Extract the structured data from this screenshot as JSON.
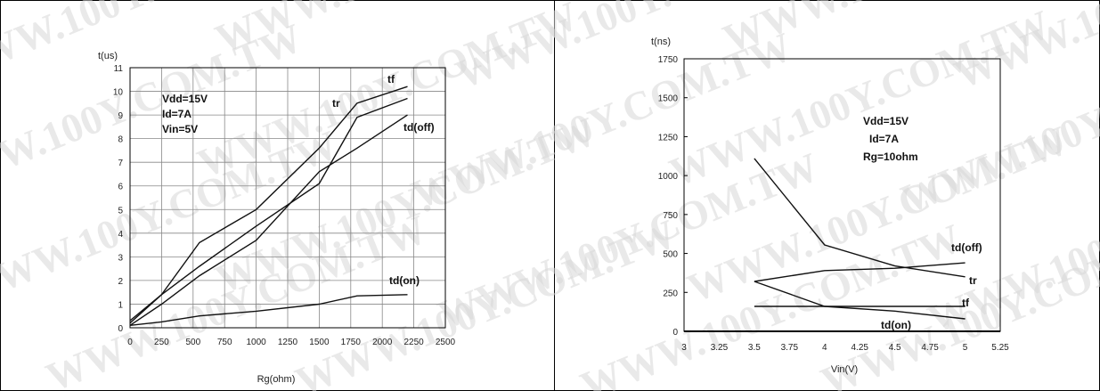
{
  "watermark": "WWW.100Y.COM.TW",
  "chart_data": [
    {
      "type": "line",
      "ylabel": "t(us)",
      "xlabel": "Rg(ohm)",
      "xlim": [
        0,
        2500
      ],
      "ylim": [
        0,
        11
      ],
      "x_ticks": [
        "0",
        "250",
        "500",
        "750",
        "1000",
        "1250",
        "1500",
        "1750",
        "2000",
        "2250",
        "2500"
      ],
      "y_ticks": [
        "0",
        "1",
        "2",
        "3",
        "4",
        "5",
        "6",
        "7",
        "8",
        "9",
        "10",
        "11"
      ],
      "grid": true,
      "annotation": [
        "Vdd=15V",
        "Id=7A",
        "Vin=5V"
      ],
      "series": [
        {
          "name": "tf",
          "x": [
            0,
            250,
            550,
            1000,
            1500,
            1800,
            2200
          ],
          "y": [
            0.3,
            1.4,
            3.6,
            5.0,
            7.6,
            9.5,
            10.2
          ]
        },
        {
          "name": "tr",
          "x": [
            0,
            250,
            550,
            1000,
            1500,
            1800,
            2200
          ],
          "y": [
            0.2,
            1.4,
            2.6,
            4.3,
            6.1,
            8.9,
            9.7
          ]
        },
        {
          "name": "td(off)",
          "x": [
            0,
            250,
            550,
            1000,
            1500,
            1800,
            2200
          ],
          "y": [
            0.1,
            1.0,
            2.2,
            3.7,
            6.6,
            7.6,
            9.0
          ]
        },
        {
          "name": "td(on)",
          "x": [
            0,
            250,
            550,
            1000,
            1500,
            1800,
            2200
          ],
          "y": [
            0.1,
            0.25,
            0.5,
            0.7,
            1.0,
            1.35,
            1.4
          ]
        }
      ]
    },
    {
      "type": "line",
      "ylabel": "t(ns)",
      "xlabel": "Vin(V)",
      "xlim": [
        3,
        5.25
      ],
      "ylim": [
        0,
        1750
      ],
      "x_ticks": [
        "3",
        "3.25",
        "3.5",
        "3.75",
        "4",
        "4.25",
        "4.5",
        "4.75",
        "5",
        "5.25"
      ],
      "y_ticks": [
        "0",
        "250",
        "500",
        "750",
        "1000",
        "1250",
        "1500",
        "1750"
      ],
      "grid": false,
      "annotation": [
        "Vdd=15V",
        "Id=7A",
        "Rg=10ohm"
      ],
      "series": [
        {
          "name": "tr",
          "x": [
            3.5,
            4,
            4.5,
            5
          ],
          "y": [
            1110,
            555,
            420,
            350
          ]
        },
        {
          "name": "td(off)",
          "x": [
            3.5,
            4,
            4.5,
            5
          ],
          "y": [
            320,
            390,
            405,
            440
          ]
        },
        {
          "name": "tf",
          "x": [
            3.5,
            4,
            4.5,
            5
          ],
          "y": [
            160,
            160,
            160,
            160
          ]
        },
        {
          "name": "td(on)",
          "x": [
            3.5,
            4,
            4.5,
            5
          ],
          "y": [
            320,
            160,
            130,
            80
          ]
        }
      ]
    }
  ]
}
